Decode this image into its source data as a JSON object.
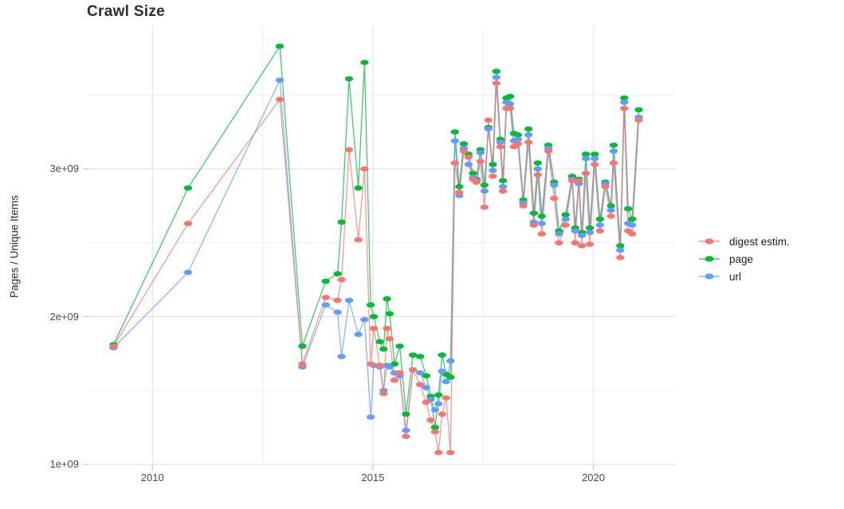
{
  "title": "Crawl Size",
  "y_axis_title": "Pages / Unique Items",
  "colors": {
    "digest": "#F8766D",
    "page": "#00BA38",
    "url": "#619CFF",
    "grid_major": "#E4E4E4",
    "grid_minor": "#EDEDED",
    "tick_mark": "#C9C9C9",
    "tick_text": "#4A4A4A",
    "title_text": "#2E2E2E",
    "background": "#FFFFFF"
  },
  "legend": [
    {
      "id": "digest",
      "label": "digest estim."
    },
    {
      "id": "page",
      "label": "page"
    },
    {
      "id": "url",
      "label": "url"
    }
  ],
  "chart_data": {
    "type": "line",
    "title": "Crawl Size",
    "xlabel": "",
    "ylabel": "Pages / Unique Items",
    "legend_position": "right",
    "grid": "major and minor, light gray on white",
    "marker": "ellipse dot on each data point",
    "x_unit": "calendar year (fractional = month of crawl)",
    "values_unit": "billions of items (1e9)",
    "xlim": [
      2008.55,
      2021.87
    ],
    "ylim": [
      1.0,
      3.965
    ],
    "x_ticks_major": [
      2010,
      2015,
      2020
    ],
    "x_ticks_minor": [
      2012.5,
      2017.5
    ],
    "x_tick_labels": [
      "2010",
      "2015",
      "2020"
    ],
    "y_ticks_major": [
      1.0,
      2.0,
      3.0
    ],
    "y_ticks_minor": [
      1.5,
      2.5,
      3.5
    ],
    "y_tick_labels": [
      "1e+09",
      "2e+09",
      "3e+09"
    ],
    "y_tick_values_raw": [
      1000000000.0,
      2000000000.0,
      3000000000.0
    ],
    "x": [
      2009.12,
      2010.81,
      2012.89,
      2013.4,
      2013.93,
      2014.2,
      2014.29,
      2014.46,
      2014.67,
      2014.81,
      2014.95,
      2015.02,
      2015.16,
      2015.24,
      2015.32,
      2015.38,
      2015.49,
      2015.61,
      2015.75,
      2015.91,
      2016.07,
      2016.21,
      2016.31,
      2016.41,
      2016.49,
      2016.57,
      2016.66,
      2016.76,
      2016.86,
      2016.96,
      2017.06,
      2017.17,
      2017.27,
      2017.35,
      2017.44,
      2017.53,
      2017.62,
      2017.72,
      2017.8,
      2017.89,
      2017.95,
      2018.03,
      2018.11,
      2018.2,
      2018.29,
      2018.41,
      2018.53,
      2018.65,
      2018.74,
      2018.83,
      2018.98,
      2019.11,
      2019.22,
      2019.37,
      2019.52,
      2019.59,
      2019.67,
      2019.74,
      2019.83,
      2019.92,
      2020.03,
      2020.15,
      2020.27,
      2020.4,
      2020.46,
      2020.61,
      2020.7,
      2020.79,
      2020.88,
      2021.03
    ],
    "series": [
      {
        "id": "page",
        "name": "page",
        "color": "#00BA38",
        "values": [
          1.81,
          2.87,
          3.83,
          1.8,
          2.24,
          2.29,
          2.64,
          3.61,
          2.87,
          3.72,
          2.08,
          2.0,
          1.83,
          1.78,
          2.12,
          2.02,
          1.68,
          1.8,
          1.34,
          1.74,
          1.73,
          1.6,
          1.46,
          1.25,
          1.47,
          1.74,
          1.61,
          1.59,
          3.25,
          2.88,
          3.17,
          3.1,
          2.97,
          2.93,
          3.13,
          2.89,
          3.28,
          3.03,
          3.66,
          3.2,
          2.92,
          3.48,
          3.49,
          3.24,
          3.23,
          2.79,
          3.27,
          2.7,
          3.04,
          2.68,
          3.16,
          2.91,
          2.58,
          2.69,
          2.95,
          2.6,
          2.93,
          2.57,
          3.1,
          2.6,
          3.1,
          2.66,
          2.91,
          2.75,
          3.16,
          2.48,
          3.48,
          2.73,
          2.66,
          3.4
        ]
      },
      {
        "id": "url",
        "name": "url",
        "color": "#619CFF",
        "values": [
          1.79,
          2.3,
          3.6,
          1.66,
          2.08,
          2.03,
          1.73,
          2.11,
          1.88,
          1.98,
          1.32,
          1.67,
          1.66,
          1.5,
          1.67,
          1.66,
          1.62,
          1.6,
          1.23,
          1.64,
          1.62,
          1.52,
          1.44,
          1.37,
          1.41,
          1.63,
          1.56,
          1.7,
          3.19,
          2.82,
          3.14,
          3.03,
          2.94,
          2.92,
          3.11,
          2.85,
          3.27,
          2.99,
          3.62,
          3.18,
          2.88,
          3.45,
          3.44,
          3.19,
          3.2,
          2.77,
          3.23,
          2.64,
          3.0,
          2.63,
          3.14,
          2.89,
          2.56,
          2.66,
          2.93,
          2.58,
          2.9,
          2.55,
          3.07,
          2.57,
          3.07,
          2.62,
          2.9,
          2.72,
          3.12,
          2.45,
          3.45,
          2.63,
          2.62,
          3.35
        ]
      },
      {
        "id": "digest",
        "name": "digest estim.",
        "color": "#F8766D",
        "values": [
          1.8,
          2.63,
          3.47,
          1.68,
          2.13,
          2.11,
          2.25,
          3.13,
          2.52,
          3.0,
          1.68,
          1.92,
          1.67,
          1.48,
          1.92,
          1.85,
          1.57,
          1.62,
          1.19,
          1.64,
          1.54,
          1.42,
          1.3,
          1.22,
          1.08,
          1.34,
          1.45,
          1.08,
          3.04,
          2.84,
          3.12,
          3.08,
          2.93,
          2.91,
          3.05,
          2.74,
          3.33,
          2.95,
          3.58,
          3.15,
          2.85,
          3.41,
          3.41,
          3.15,
          3.17,
          2.75,
          3.18,
          2.62,
          2.96,
          2.56,
          3.12,
          2.8,
          2.5,
          2.62,
          2.92,
          2.5,
          2.92,
          2.48,
          2.97,
          2.49,
          3.03,
          2.58,
          2.88,
          2.68,
          3.04,
          2.4,
          3.41,
          2.58,
          2.56,
          3.33
        ]
      }
    ]
  }
}
